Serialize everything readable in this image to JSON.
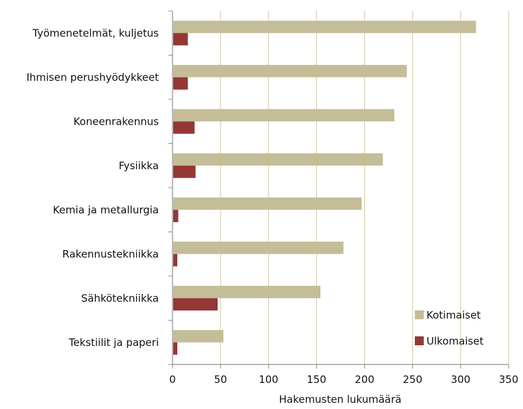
{
  "chart_data": {
    "type": "bar",
    "orientation": "horizontal",
    "categories": [
      "Työmenetelmät, kuljetus",
      "Ihmisen perushyödykkeet",
      "Koneenrakennus",
      "Fysiikka",
      "Kemia ja metallurgia",
      "Rakennustekniikka",
      "Sähkötekniikka",
      "Tekstiilit ja paperi"
    ],
    "series": [
      {
        "name": "Kotimaiset",
        "color": "#c4bd97",
        "values": [
          316,
          244,
          231,
          219,
          197,
          178,
          154,
          53
        ]
      },
      {
        "name": "Ulkomaiset",
        "color": "#953735",
        "values": [
          16,
          16,
          23,
          24,
          6,
          5,
          47,
          5
        ]
      }
    ],
    "xlabel": "Hakemusten lukumäärä",
    "ylabel": "",
    "xlim": [
      0,
      350
    ],
    "xticks": [
      0,
      50,
      100,
      150,
      200,
      250,
      300,
      350
    ],
    "grid": "vertical",
    "gridColor": "#d9d1a8",
    "legend": "bottom-right"
  }
}
